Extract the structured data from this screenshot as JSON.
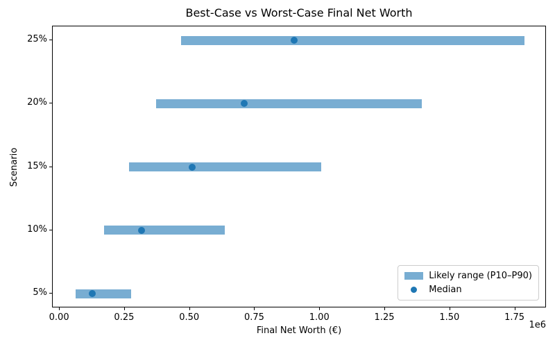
{
  "colors": {
    "bar_fill": "#78add2",
    "median_dot": "#1f77b4",
    "spine": "#000000",
    "legend_border": "#cccccc",
    "text": "#000000"
  },
  "chart_data": {
    "type": "bar",
    "orientation": "horizontal",
    "title": "Best-Case vs Worst-Case Final Net Worth",
    "xlabel": "Final Net Worth (€)",
    "ylabel": "Scenario",
    "x_offset_label": "1e6",
    "categories": [
      "5%",
      "10%",
      "15%",
      "20%",
      "25%"
    ],
    "series": [
      {
        "name": "P10",
        "values": [
          60000,
          170000,
          265000,
          370000,
          465000
        ]
      },
      {
        "name": "Median",
        "values": [
          125000,
          315000,
          510000,
          710000,
          900000
        ]
      },
      {
        "name": "P90",
        "values": [
          275000,
          635000,
          1005000,
          1390000,
          1785000
        ]
      }
    ],
    "xlim": [
      -27000,
      1871000
    ],
    "xticks": [
      0,
      250000,
      500000,
      750000,
      1000000,
      1250000,
      1500000,
      1750000
    ],
    "xtick_labels": [
      "0.00",
      "0.25",
      "0.50",
      "0.75",
      "1.00",
      "1.25",
      "1.50",
      "1.75"
    ],
    "grid": false,
    "legend": {
      "position": "lower right",
      "range_label": "Likely range (P10–P90)",
      "median_label": "Median"
    }
  }
}
